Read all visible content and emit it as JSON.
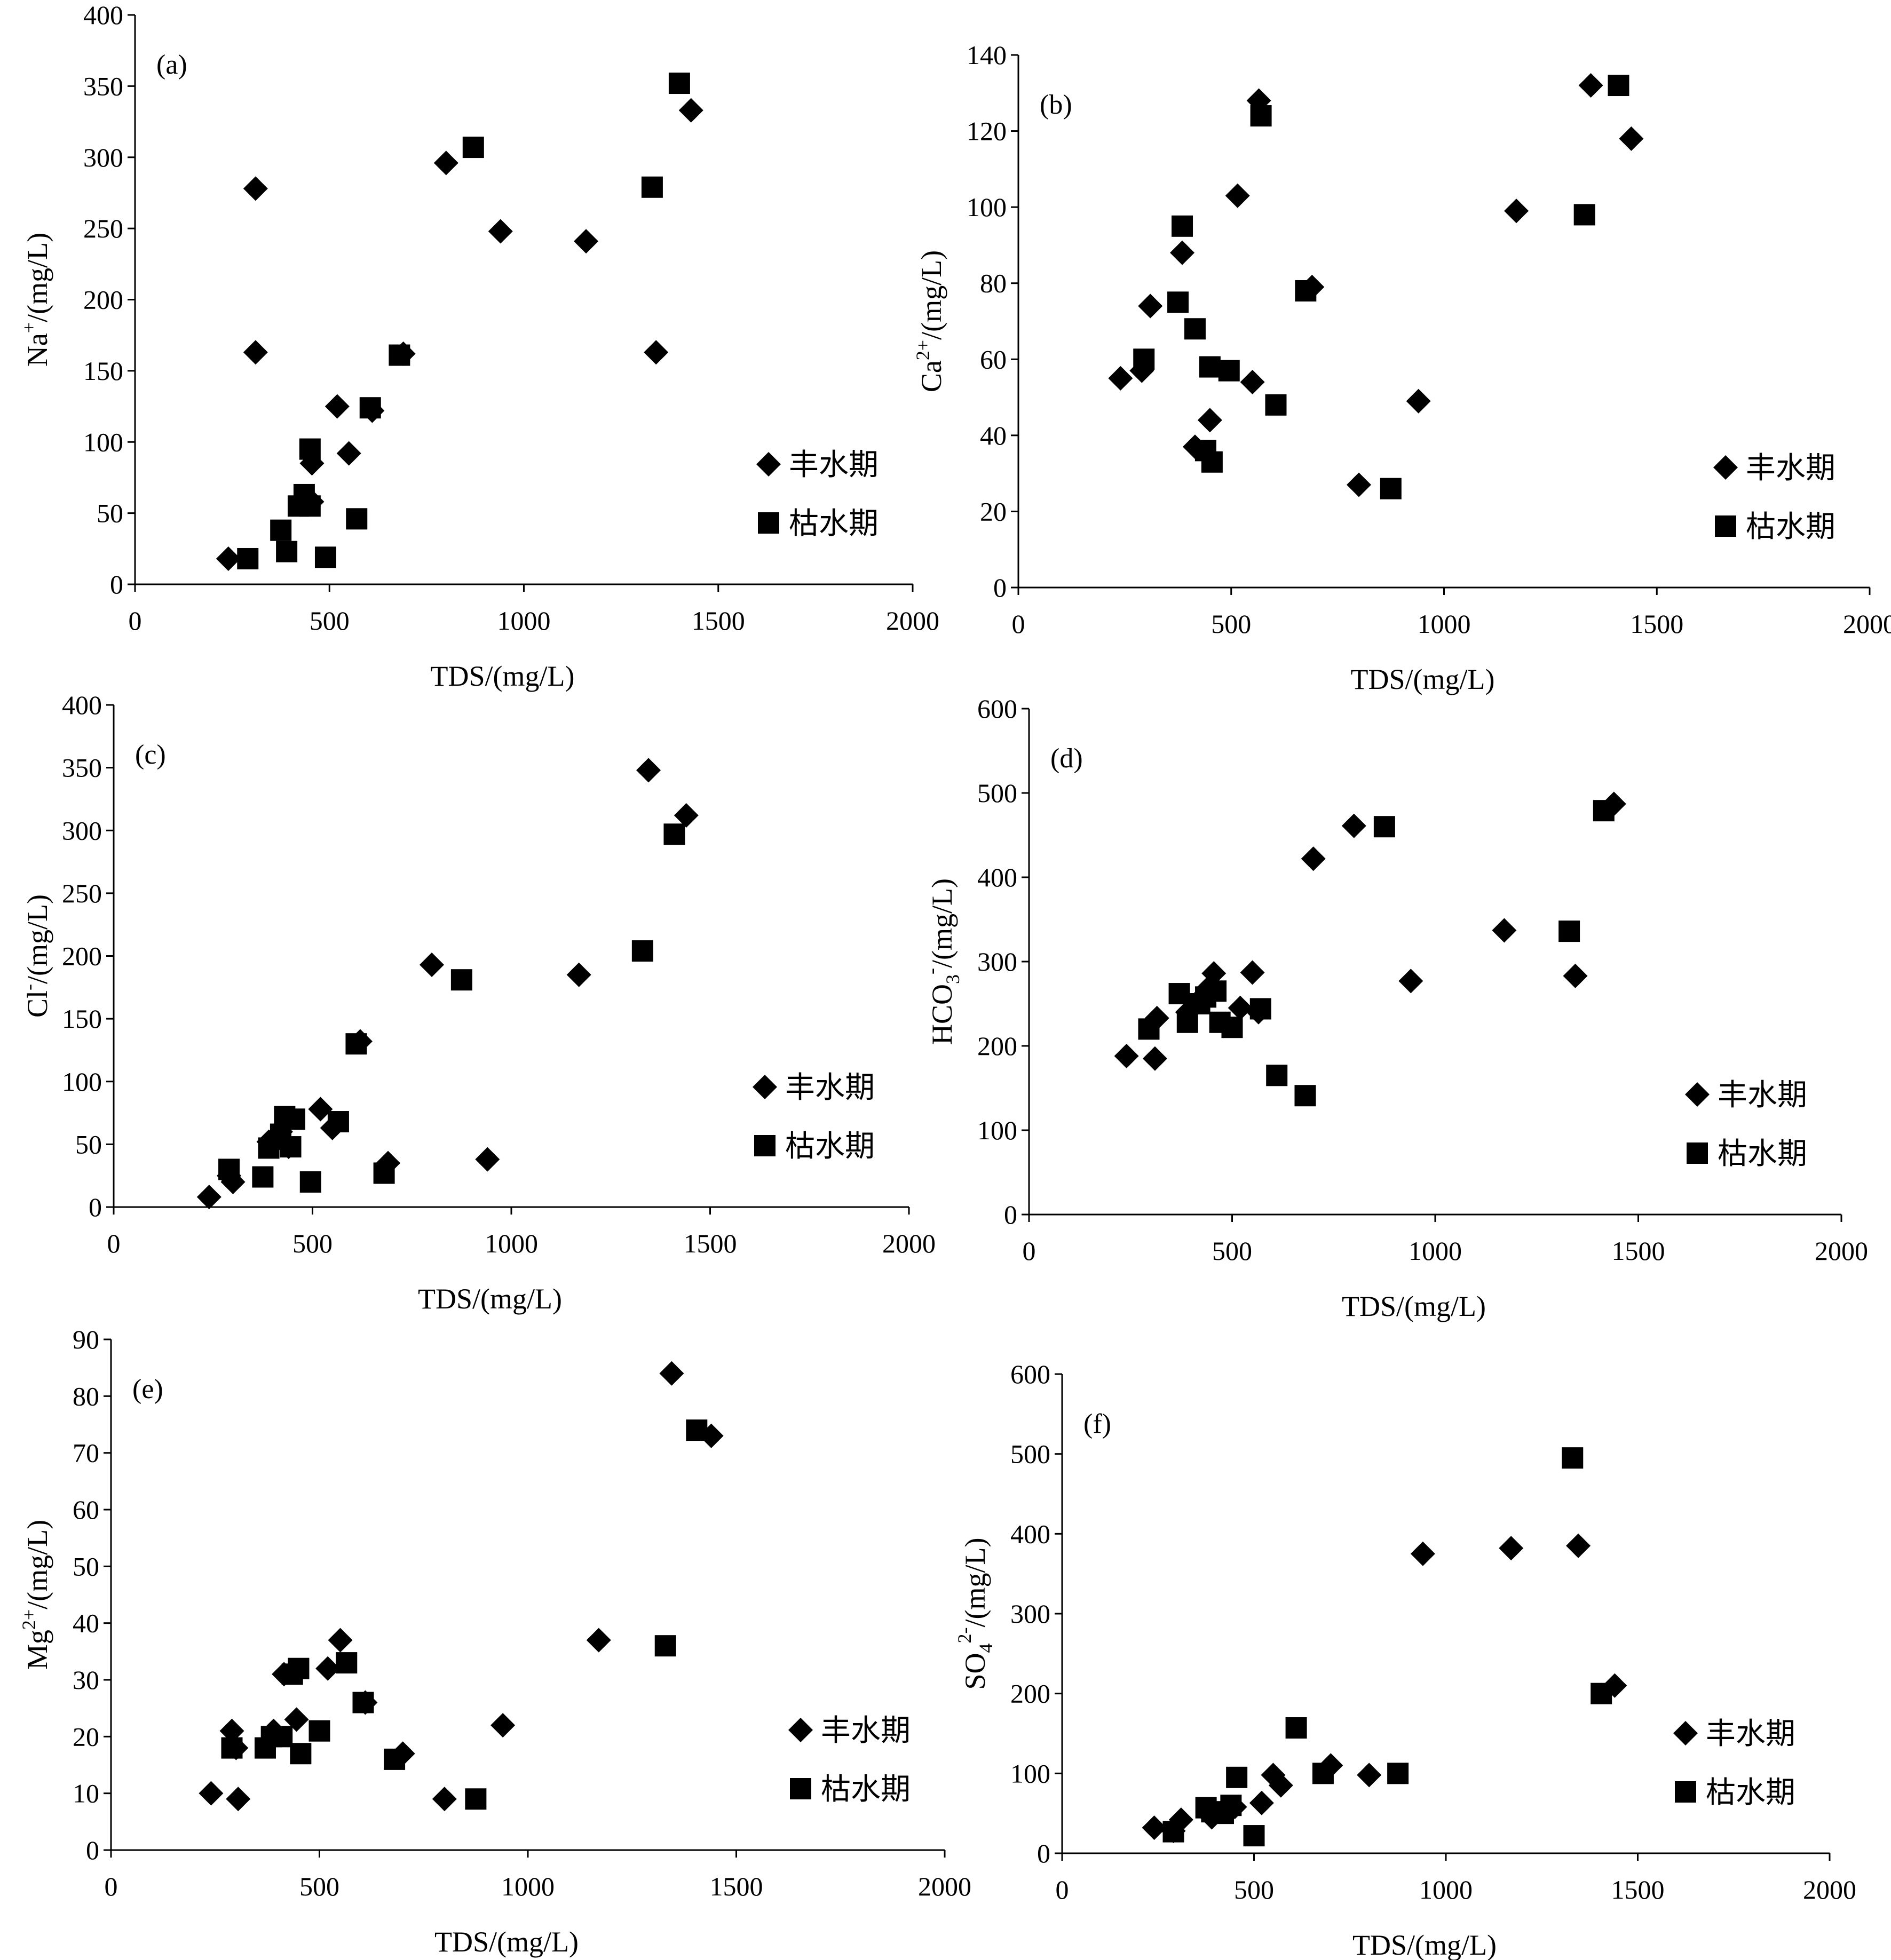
{
  "figure": {
    "legend": {
      "series_wet": "丰水期",
      "series_dry": "枯水期"
    },
    "colors": {
      "marker": "#000000",
      "axis": "#000000",
      "background": "#ffffff"
    },
    "marker_shapes": {
      "丰水期": "diamond",
      "枯水期": "square"
    }
  },
  "chart_data": [
    {
      "id": "a",
      "type": "scatter",
      "panel_label": "(a)",
      "xlabel": "TDS/(mg/L)",
      "ylabel": {
        "base": "Na",
        "sup": "+",
        "sub": "",
        "unit": "/(mg/L)"
      },
      "xlim": [
        0,
        2000
      ],
      "ylim": [
        0,
        400
      ],
      "xticks": [
        0,
        500,
        1000,
        1500,
        2000
      ],
      "yticks": [
        0,
        50,
        100,
        150,
        200,
        250,
        300,
        350,
        400
      ],
      "grid": false,
      "legend_position": "bottom-right",
      "series": [
        {
          "name": "丰水期",
          "marker": "diamond",
          "points": [
            [
              240,
              18
            ],
            [
              310,
              278
            ],
            [
              310,
              163
            ],
            [
              455,
              85
            ],
            [
              455,
              58
            ],
            [
              520,
              125
            ],
            [
              550,
              92
            ],
            [
              690,
              162
            ],
            [
              610,
              122
            ],
            [
              800,
              296
            ],
            [
              940,
              248
            ],
            [
              1160,
              241
            ],
            [
              1340,
              163
            ],
            [
              1430,
              333
            ]
          ]
        },
        {
          "name": "枯水期",
          "marker": "square",
          "points": [
            [
              290,
              18
            ],
            [
              375,
              38
            ],
            [
              390,
              23
            ],
            [
              420,
              55
            ],
            [
              435,
              63
            ],
            [
              450,
              55
            ],
            [
              450,
              95
            ],
            [
              490,
              19
            ],
            [
              570,
              46
            ],
            [
              605,
              124
            ],
            [
              680,
              161
            ],
            [
              870,
              307
            ],
            [
              1330,
              279
            ],
            [
              1400,
              352
            ]
          ]
        }
      ]
    },
    {
      "id": "b",
      "type": "scatter",
      "panel_label": "(b)",
      "xlabel": "TDS/(mg/L)",
      "ylabel": {
        "base": "Ca",
        "sup": "2+",
        "sub": "",
        "unit": "/(mg/L)"
      },
      "xlim": [
        0,
        2000
      ],
      "ylim": [
        0,
        140
      ],
      "xticks": [
        0,
        500,
        1000,
        1500,
        2000
      ],
      "yticks": [
        0,
        20,
        40,
        60,
        80,
        100,
        120,
        140
      ],
      "grid": false,
      "legend_position": "bottom-right",
      "series": [
        {
          "name": "丰水期",
          "marker": "diamond",
          "points": [
            [
              240,
              55
            ],
            [
              290,
              57
            ],
            [
              310,
              74
            ],
            [
              385,
              88
            ],
            [
              415,
              37
            ],
            [
              450,
              44
            ],
            [
              515,
              103
            ],
            [
              550,
              54
            ],
            [
              565,
              128
            ],
            [
              690,
              79
            ],
            [
              800,
              27
            ],
            [
              940,
              49
            ],
            [
              1170,
              99
            ],
            [
              1345,
              132
            ],
            [
              1440,
              118
            ]
          ]
        },
        {
          "name": "枯水期",
          "marker": "square",
          "points": [
            [
              295,
              60
            ],
            [
              375,
              75
            ],
            [
              385,
              95
            ],
            [
              415,
              68
            ],
            [
              440,
              36
            ],
            [
              450,
              58
            ],
            [
              455,
              33
            ],
            [
              495,
              57
            ],
            [
              570,
              124
            ],
            [
              605,
              48
            ],
            [
              675,
              78
            ],
            [
              875,
              26
            ],
            [
              1330,
              98
            ],
            [
              1410,
              132
            ]
          ]
        }
      ]
    },
    {
      "id": "c",
      "type": "scatter",
      "panel_label": "(c)",
      "xlabel": "TDS/(mg/L)",
      "ylabel": {
        "base": "Cl",
        "sup": "-",
        "sub": "",
        "unit": "/(mg/L)"
      },
      "xlim": [
        0,
        2000
      ],
      "ylim": [
        0,
        400
      ],
      "xticks": [
        0,
        500,
        1000,
        1500,
        2000
      ],
      "yticks": [
        0,
        50,
        100,
        150,
        200,
        250,
        300,
        350,
        400
      ],
      "grid": false,
      "legend_position": "bottom-right",
      "series": [
        {
          "name": "丰水期",
          "marker": "diamond",
          "points": [
            [
              240,
              8
            ],
            [
              290,
              25
            ],
            [
              300,
              20
            ],
            [
              390,
              52
            ],
            [
              420,
              60
            ],
            [
              440,
              48
            ],
            [
              520,
              78
            ],
            [
              550,
              63
            ],
            [
              620,
              132
            ],
            [
              690,
              35
            ],
            [
              800,
              193
            ],
            [
              940,
              38
            ],
            [
              1170,
              185
            ],
            [
              1345,
              348
            ],
            [
              1440,
              312
            ]
          ]
        },
        {
          "name": "枯水期",
          "marker": "square",
          "points": [
            [
              290,
              30
            ],
            [
              375,
              24
            ],
            [
              390,
              47
            ],
            [
              420,
              58
            ],
            [
              430,
              72
            ],
            [
              445,
              48
            ],
            [
              455,
              70
            ],
            [
              495,
              20
            ],
            [
              565,
              68
            ],
            [
              610,
              130
            ],
            [
              680,
              27
            ],
            [
              875,
              181
            ],
            [
              1330,
              204
            ],
            [
              1410,
              297
            ]
          ]
        }
      ]
    },
    {
      "id": "d",
      "type": "scatter",
      "panel_label": "(d)",
      "xlabel": "TDS/(mg/L)",
      "ylabel": {
        "base": "HCO",
        "sup": "-",
        "sub": "3",
        "unit": "/(mg/L)"
      },
      "xlim": [
        0,
        2000
      ],
      "ylim": [
        0,
        600
      ],
      "xticks": [
        0,
        500,
        1000,
        1500,
        2000
      ],
      "yticks": [
        0,
        100,
        200,
        300,
        400,
        500,
        600
      ],
      "grid": false,
      "legend_position": "bottom-right",
      "series": [
        {
          "name": "丰水期",
          "marker": "diamond",
          "points": [
            [
              240,
              188
            ],
            [
              310,
              185
            ],
            [
              315,
              233
            ],
            [
              390,
              240
            ],
            [
              420,
              255
            ],
            [
              440,
              268
            ],
            [
              455,
              286
            ],
            [
              520,
              245
            ],
            [
              550,
              287
            ],
            [
              565,
              240
            ],
            [
              700,
              422
            ],
            [
              800,
              461
            ],
            [
              940,
              277
            ],
            [
              1170,
              337
            ],
            [
              1345,
              283
            ],
            [
              1440,
              487
            ]
          ]
        },
        {
          "name": "枯水期",
          "marker": "square",
          "points": [
            [
              295,
              220
            ],
            [
              370,
              262
            ],
            [
              390,
              228
            ],
            [
              420,
              250
            ],
            [
              435,
              258
            ],
            [
              460,
              265
            ],
            [
              470,
              228
            ],
            [
              500,
              222
            ],
            [
              570,
              244
            ],
            [
              610,
              165
            ],
            [
              680,
              141
            ],
            [
              875,
              460
            ],
            [
              1330,
              336
            ],
            [
              1415,
              479
            ]
          ]
        }
      ]
    },
    {
      "id": "e",
      "type": "scatter",
      "panel_label": "(e)",
      "xlabel": "TDS/(mg/L)",
      "ylabel": {
        "base": "Mg",
        "sup": "2+",
        "sub": "",
        "unit": "/(mg/L)"
      },
      "xlim": [
        0,
        2000
      ],
      "ylim": [
        0,
        90
      ],
      "xticks": [
        0,
        500,
        1000,
        1500,
        2000
      ],
      "yticks": [
        0,
        10,
        20,
        30,
        40,
        50,
        60,
        70,
        80,
        90
      ],
      "grid": false,
      "legend_position": "bottom-right",
      "series": [
        {
          "name": "丰水期",
          "marker": "diamond",
          "points": [
            [
              240,
              10
            ],
            [
              290,
              21
            ],
            [
              300,
              18
            ],
            [
              305,
              9
            ],
            [
              390,
              21
            ],
            [
              415,
              31
            ],
            [
              445,
              23
            ],
            [
              520,
              32
            ],
            [
              550,
              37
            ],
            [
              610,
              26
            ],
            [
              700,
              17
            ],
            [
              800,
              9
            ],
            [
              940,
              22
            ],
            [
              1170,
              37
            ],
            [
              1345,
              84
            ],
            [
              1440,
              73
            ]
          ]
        },
        {
          "name": "枯水期",
          "marker": "square",
          "points": [
            [
              290,
              18
            ],
            [
              370,
              18
            ],
            [
              385,
              20
            ],
            [
              410,
              20
            ],
            [
              435,
              31
            ],
            [
              450,
              32
            ],
            [
              455,
              17
            ],
            [
              500,
              21
            ],
            [
              565,
              33
            ],
            [
              605,
              26
            ],
            [
              680,
              16
            ],
            [
              875,
              9
            ],
            [
              1330,
              36
            ],
            [
              1405,
              74
            ]
          ]
        }
      ]
    },
    {
      "id": "f",
      "type": "scatter",
      "panel_label": "(f)",
      "xlabel": "TDS/(mg/L)",
      "ylabel": {
        "base": "SO",
        "sup": "2-",
        "sub": "4",
        "unit": "/(mg/L)"
      },
      "xlim": [
        0,
        2000
      ],
      "ylim": [
        0,
        600
      ],
      "xticks": [
        0,
        500,
        1000,
        1500,
        2000
      ],
      "yticks": [
        0,
        100,
        200,
        300,
        400,
        500,
        600
      ],
      "grid": false,
      "legend_position": "bottom-right",
      "series": [
        {
          "name": "丰水期",
          "marker": "diamond",
          "points": [
            [
              240,
              32
            ],
            [
              290,
              28
            ],
            [
              310,
              42
            ],
            [
              390,
              45
            ],
            [
              425,
              52
            ],
            [
              450,
              58
            ],
            [
              520,
              63
            ],
            [
              550,
              98
            ],
            [
              570,
              85
            ],
            [
              700,
              110
            ],
            [
              800,
              98
            ],
            [
              940,
              375
            ],
            [
              1170,
              382
            ],
            [
              1345,
              385
            ],
            [
              1440,
              210
            ]
          ]
        },
        {
          "name": "枯水期",
          "marker": "square",
          "points": [
            [
              290,
              27
            ],
            [
              375,
              57
            ],
            [
              390,
              52
            ],
            [
              420,
              50
            ],
            [
              440,
              60
            ],
            [
              455,
              95
            ],
            [
              500,
              22
            ],
            [
              610,
              157
            ],
            [
              680,
              100
            ],
            [
              875,
              100
            ],
            [
              1330,
              495
            ],
            [
              1405,
              200
            ]
          ]
        }
      ]
    }
  ]
}
